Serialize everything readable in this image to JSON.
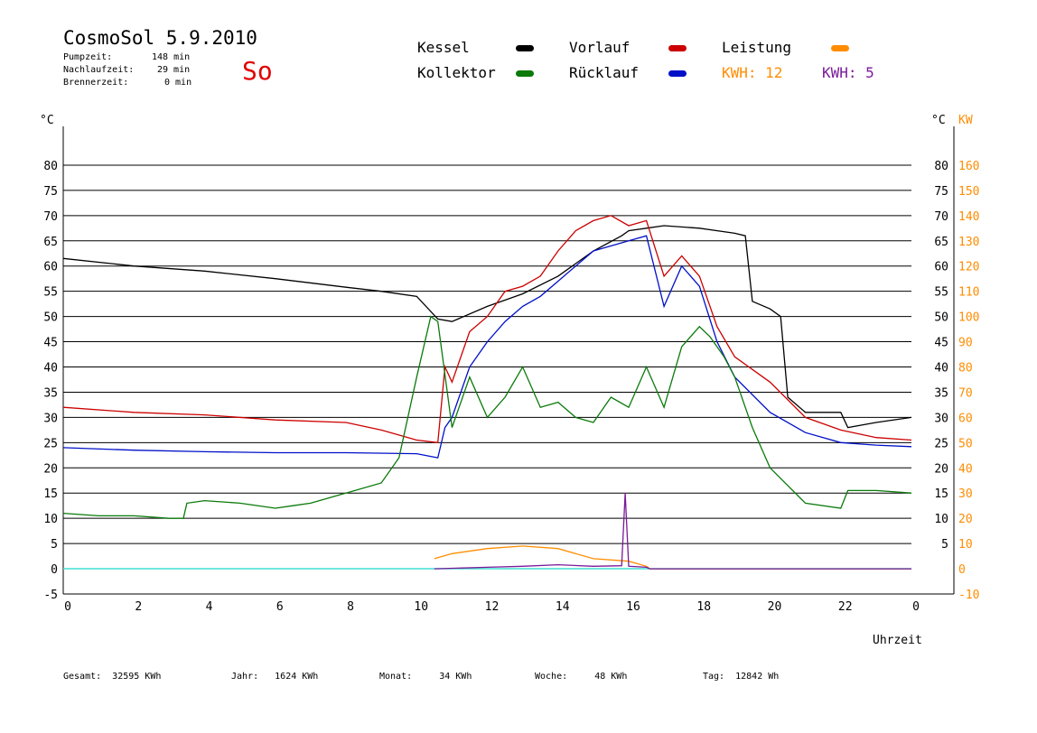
{
  "header": {
    "title": "CosmoSol 5.9.2010",
    "day": "So",
    "stats": [
      {
        "label": "Pumpzeit:",
        "value": "148 min"
      },
      {
        "label": "Nachlaufzeit:",
        "value": "29 min"
      },
      {
        "label": "Brennerzeit:",
        "value": "0 min"
      }
    ]
  },
  "legend": {
    "kessel": "Kessel",
    "kollektor": "Kollektor",
    "vorlauf": "Vorlauf",
    "ruecklauf": "Rücklauf",
    "leistung": "Leistung",
    "kwh1": "KWH: 12",
    "kwh2": "KWH: 5"
  },
  "footer": {
    "gesamt": "Gesamt:  32595 KWh",
    "jahr": "Jahr:   1624 KWh",
    "monat": "Monat:     34 KWh",
    "woche": "Woche:     48 KWh",
    "tag": "Tag:  12842 Wh"
  },
  "colors": {
    "kessel": "#000000",
    "kollektor": "#0a7a0a",
    "vorlauf": "#cc0000",
    "ruecklauf": "#0010c8",
    "leistung": "#ff8c00",
    "kwh2": "#7a1a9a",
    "baseline": "#40e0d0"
  },
  "chart_data": {
    "type": "line",
    "xlabel": "Uhrzeit",
    "ylabel_left": "°C",
    "ylabel_right": "°C",
    "ylabel_right2": "KW",
    "xlim": [
      0,
      24
    ],
    "ylim": [
      -5,
      85
    ],
    "x_ticks": [
      "0",
      "2",
      "4",
      "6",
      "8",
      "10",
      "12",
      "14",
      "16",
      "18",
      "20",
      "22",
      "0"
    ],
    "y_ticks_left": [
      "-5",
      "0",
      "5",
      "10",
      "15",
      "20",
      "25",
      "30",
      "35",
      "40",
      "45",
      "50",
      "55",
      "60",
      "65",
      "70",
      "75",
      "80"
    ],
    "y_ticks_right": [
      "",
      "",
      "5",
      "10",
      "15",
      "20",
      "25",
      "30",
      "35",
      "40",
      "45",
      "50",
      "55",
      "60",
      "65",
      "70",
      "75",
      "80"
    ],
    "y_ticks_right2": [
      "-10",
      "0",
      "10",
      "20",
      "30",
      "40",
      "50",
      "60",
      "70",
      "80",
      "90",
      "100",
      "110",
      "120",
      "130",
      "140",
      "150",
      "160"
    ],
    "series": [
      {
        "name": "Kessel",
        "color_key": "kessel",
        "x": [
          0,
          2,
          4,
          6,
          8,
          9,
          10,
          10.6,
          11,
          12,
          13,
          14,
          15,
          15.8,
          16,
          16.5,
          17,
          18,
          19,
          19.3,
          19.5,
          20,
          20.3,
          20.5,
          21,
          22,
          22.2,
          23,
          24
        ],
        "y": [
          61.5,
          60,
          59,
          57.5,
          55.8,
          55,
          54,
          49.5,
          49,
          52,
          54.5,
          58,
          63,
          66,
          67,
          67.5,
          68,
          67.5,
          66.5,
          66,
          53,
          51.5,
          50,
          34,
          31,
          31,
          28,
          29,
          30
        ]
      },
      {
        "name": "Vorlauf",
        "color_key": "vorlauf",
        "x": [
          0,
          2,
          4,
          6,
          8,
          9,
          10,
          10.6,
          10.8,
          11,
          11.5,
          12,
          12.5,
          13,
          13.5,
          14,
          14.5,
          15,
          15.5,
          16,
          16.5,
          17,
          17.5,
          18,
          18.5,
          19,
          20,
          21,
          22,
          23,
          24
        ],
        "y": [
          32,
          31,
          30.5,
          29.5,
          29,
          27.5,
          25.5,
          25,
          40,
          37,
          47,
          50,
          55,
          56,
          58,
          63,
          67,
          69,
          70,
          68,
          69,
          58,
          62,
          58,
          48,
          42,
          37,
          30,
          27.5,
          26,
          25.5
        ]
      },
      {
        "name": "Rücklauf",
        "color_key": "ruecklauf",
        "x": [
          0,
          2,
          4,
          6,
          8,
          10,
          10.6,
          10.8,
          11,
          11.5,
          12,
          12.5,
          13,
          13.5,
          14,
          14.5,
          15,
          15.5,
          16,
          16.5,
          17,
          17.5,
          18,
          18.5,
          19,
          20,
          21,
          22,
          23,
          24
        ],
        "y": [
          24,
          23.5,
          23.2,
          23,
          23,
          22.8,
          22,
          28,
          30,
          40,
          45,
          49,
          52,
          54,
          57,
          60,
          63,
          64,
          65,
          66,
          52,
          60,
          56,
          45,
          38,
          31,
          27,
          25,
          24.5,
          24.2
        ]
      },
      {
        "name": "Kollektor",
        "color_key": "kollektor",
        "x": [
          0,
          1,
          2,
          3,
          3.4,
          3.5,
          4,
          5,
          6,
          6.5,
          7,
          8,
          9,
          9.5,
          10,
          10.4,
          10.6,
          11,
          11.5,
          12,
          12.5,
          13,
          13.5,
          14,
          14.5,
          15,
          15.5,
          16,
          16.5,
          17,
          17.5,
          18,
          18.3,
          18.7,
          19,
          19.5,
          20,
          21,
          22,
          22.2,
          23,
          24
        ],
        "y": [
          11,
          10.5,
          10.5,
          10,
          10,
          13,
          13.5,
          13,
          12,
          12.5,
          13,
          15,
          17,
          22,
          38,
          50,
          49,
          28,
          38,
          30,
          34,
          40,
          32,
          33,
          30,
          29,
          34,
          32,
          40,
          32,
          44,
          48,
          46,
          42,
          38,
          28,
          20,
          13,
          12,
          15.5,
          15.5,
          15
        ]
      },
      {
        "name": "Leistung",
        "color_key": "leistung",
        "x": [
          10.5,
          11,
          12,
          13,
          14,
          15,
          16,
          16.5,
          16.6,
          24
        ],
        "y": [
          2,
          3,
          4,
          4.5,
          4,
          2,
          1.5,
          0.5,
          0,
          0
        ]
      },
      {
        "name": "KWH: 5",
        "color_key": "kwh2",
        "x": [
          10.5,
          12,
          13,
          14,
          15,
          15.8,
          15.9,
          16,
          16.5,
          16.6,
          24
        ],
        "y": [
          0,
          0.3,
          0.5,
          0.8,
          0.5,
          0.6,
          15,
          0.5,
          0.3,
          0,
          0
        ]
      }
    ]
  }
}
